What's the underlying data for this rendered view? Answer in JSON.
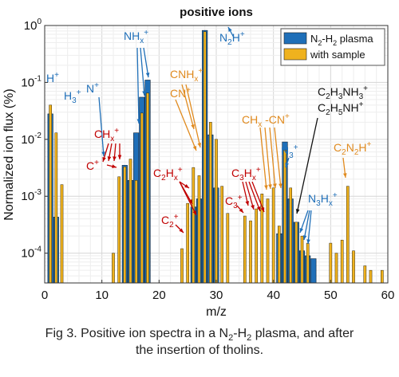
{
  "chart_data": {
    "type": "bar",
    "title": "positive ions",
    "xlabel": "m/z",
    "ylabel": "Normalized ion flux (%)",
    "xlim": [
      0,
      60
    ],
    "ylim": [
      3e-05,
      1
    ],
    "yscale": "log",
    "grid": true,
    "legend_position": "top-right",
    "x_ticks": [
      0,
      10,
      20,
      30,
      40,
      50,
      60
    ],
    "y_ticks": [
      {
        "value": 1,
        "base": "10",
        "exp": "0"
      },
      {
        "value": 0.1,
        "base": "10",
        "exp": "-1"
      },
      {
        "value": 0.01,
        "base": "10",
        "exp": "-2"
      },
      {
        "value": 0.001,
        "base": "10",
        "exp": "-3"
      },
      {
        "value": 0.0001,
        "base": "10",
        "exp": "-4"
      }
    ],
    "series": [
      {
        "name": "N2-H2 plasma",
        "label_parts": [
          [
            "N",
            ""
          ],
          [
            "2",
            "sub"
          ],
          [
            "-H",
            ""
          ],
          [
            "2",
            "sub"
          ],
          [
            " plasma",
            ""
          ]
        ],
        "color": "#1f6fb8",
        "points": [
          [
            1,
            0.028
          ],
          [
            2,
            0.00043
          ],
          [
            14,
            0.0035
          ],
          [
            15,
            0.0019
          ],
          [
            16,
            0.013
          ],
          [
            17,
            0.055
          ],
          [
            18,
            0.11
          ],
          [
            26,
            0.00065
          ],
          [
            27,
            0.0009
          ],
          [
            28,
            0.82
          ],
          [
            29,
            0.012
          ],
          [
            30,
            0.0014
          ],
          [
            41,
            0.00022
          ],
          [
            42,
            0.009
          ],
          [
            43,
            0.0009
          ],
          [
            44,
            0.00035
          ],
          [
            45,
            0.00011
          ],
          [
            46,
            9e-05
          ],
          [
            47,
            8e-05
          ]
        ]
      },
      {
        "name": "with sample",
        "label_parts": [
          [
            "with sample",
            ""
          ]
        ],
        "color": "#efb21e",
        "points": [
          [
            1,
            0.04
          ],
          [
            2,
            0.013
          ],
          [
            3,
            0.0016
          ],
          [
            12,
            0.0001
          ],
          [
            13,
            0.0022
          ],
          [
            14,
            0.0033
          ],
          [
            15,
            0.0045
          ],
          [
            16,
            0.0019
          ],
          [
            17,
            0.029
          ],
          [
            18,
            0.065
          ],
          [
            24,
            0.00012
          ],
          [
            25,
            0.00075
          ],
          [
            26,
            0.0032
          ],
          [
            27,
            0.0023
          ],
          [
            28,
            0.78
          ],
          [
            29,
            0.02
          ],
          [
            30,
            0.01
          ],
          [
            31,
            0.0015
          ],
          [
            32,
            0.0005
          ],
          [
            35,
            0.00045
          ],
          [
            36,
            0.00037
          ],
          [
            37,
            0.0006
          ],
          [
            38,
            0.0011
          ],
          [
            39,
            0.0009
          ],
          [
            40,
            0.0014
          ],
          [
            41,
            0.0003
          ],
          [
            42,
            0.0065
          ],
          [
            43,
            0.0014
          ],
          [
            44,
            0.00035
          ],
          [
            45,
            0.0002
          ],
          [
            46,
            0.00015
          ],
          [
            50,
            0.00015
          ],
          [
            51,
            0.0001
          ],
          [
            52,
            0.00017
          ],
          [
            53,
            0.0015
          ],
          [
            54,
            0.00011
          ],
          [
            56,
            6e-05
          ],
          [
            57,
            5e-05
          ],
          [
            59,
            5e-05
          ]
        ]
      }
    ],
    "annotations": [
      {
        "parts": [
          [
            "H",
            ""
          ],
          [
            "+",
            "sup"
          ]
        ],
        "color": "#1f6fb8"
      },
      {
        "parts": [
          [
            "H",
            ""
          ],
          [
            "3",
            "sub"
          ],
          [
            "+",
            "sup"
          ]
        ],
        "color": "#1f6fb8"
      },
      {
        "parts": [
          [
            "N",
            ""
          ],
          [
            "+",
            "sup"
          ]
        ],
        "color": "#1f6fb8"
      },
      {
        "parts": [
          [
            "NH",
            ""
          ],
          [
            "x",
            "sub"
          ],
          [
            "+",
            "sup"
          ]
        ],
        "color": "#1f6fb8"
      },
      {
        "parts": [
          [
            "N",
            ""
          ],
          [
            "2",
            "sub"
          ],
          [
            "H",
            ""
          ],
          [
            "+",
            "sup"
          ]
        ],
        "color": "#1f6fb8"
      },
      {
        "parts": [
          [
            "CNH",
            ""
          ],
          [
            "x",
            "sub"
          ],
          [
            "+",
            "sup"
          ]
        ],
        "color": "#e08a1e"
      },
      {
        "parts": [
          [
            "CN",
            ""
          ],
          [
            "+",
            "sup"
          ]
        ],
        "color": "#e08a1e"
      },
      {
        "parts": [
          [
            "CH",
            ""
          ],
          [
            "x",
            "sub"
          ],
          [
            "+",
            "sup"
          ]
        ],
        "color": "#c00000"
      },
      {
        "parts": [
          [
            "C",
            ""
          ],
          [
            "+",
            "sup"
          ]
        ],
        "color": "#c00000"
      },
      {
        "parts": [
          [
            "C",
            ""
          ],
          [
            "2",
            "sub"
          ],
          [
            "H",
            ""
          ],
          [
            "x",
            "sub"
          ],
          [
            "+",
            "sup"
          ]
        ],
        "color": "#c00000"
      },
      {
        "parts": [
          [
            "C",
            ""
          ],
          [
            "2",
            "sub"
          ],
          [
            "+",
            "sup"
          ]
        ],
        "color": "#c00000"
      },
      {
        "parts": [
          [
            "C",
            ""
          ],
          [
            "3",
            "sub"
          ],
          [
            "H",
            ""
          ],
          [
            "x",
            "sub"
          ],
          [
            "+",
            "sup"
          ]
        ],
        "color": "#c00000"
      },
      {
        "parts": [
          [
            "C",
            ""
          ],
          [
            "3",
            "sub"
          ],
          [
            "+",
            "sup"
          ]
        ],
        "color": "#c00000"
      },
      {
        "parts": [
          [
            "CH",
            ""
          ],
          [
            "x",
            "sub"
          ],
          [
            " -CN",
            ""
          ],
          [
            "+",
            "sup"
          ]
        ],
        "color": "#e08a1e"
      },
      {
        "parts": [
          [
            "C",
            ""
          ],
          [
            "2",
            "sub"
          ],
          [
            "H",
            ""
          ],
          [
            "3",
            "sub"
          ],
          [
            "NH",
            ""
          ],
          [
            "3",
            "sub"
          ],
          [
            "+",
            "sup"
          ]
        ],
        "color": "#111111"
      },
      {
        "parts": [
          [
            "C",
            ""
          ],
          [
            "2",
            "sub"
          ],
          [
            "H",
            ""
          ],
          [
            "5",
            "sub"
          ],
          [
            "NH",
            ""
          ],
          [
            "+",
            "sup"
          ]
        ],
        "color": "#111111"
      },
      {
        "parts": [
          [
            "N",
            ""
          ],
          [
            "3",
            "sub"
          ],
          [
            "+",
            "sup"
          ]
        ],
        "color": "#1f6fb8"
      },
      {
        "parts": [
          [
            "N",
            ""
          ],
          [
            "3",
            "sub"
          ],
          [
            "H",
            ""
          ],
          [
            "x",
            "sub"
          ],
          [
            "+",
            "sup"
          ]
        ],
        "color": "#1f6fb8"
      },
      {
        "parts": [
          [
            "C",
            ""
          ],
          [
            "2",
            "sub"
          ],
          [
            "N",
            ""
          ],
          [
            "2",
            "sub"
          ],
          [
            "H",
            ""
          ],
          [
            "+",
            "sup"
          ]
        ],
        "color": "#e08a1e"
      }
    ]
  },
  "caption": {
    "line1": [
      [
        "Fig 3. Positive ion spectra in a N",
        ""
      ],
      [
        "2",
        "sub"
      ],
      [
        "-H",
        ""
      ],
      [
        "2",
        "sub"
      ],
      [
        " plasma, and after",
        ""
      ]
    ],
    "line2": "the insertion of tholins."
  }
}
